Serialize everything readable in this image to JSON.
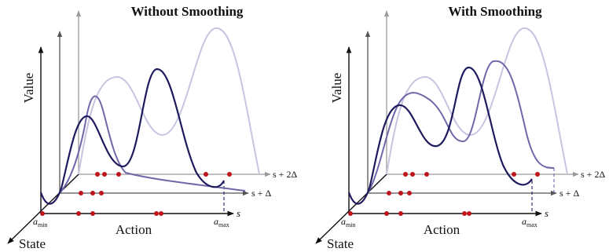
{
  "panels": [
    {
      "title": "Without Smoothing",
      "axis_labels": {
        "value": "Value",
        "state": "State",
        "action": "Action",
        "s0": "s",
        "s1": "s + Δ",
        "s2": "s + 2Δ",
        "a_min_base": "a",
        "a_min_sub": "min",
        "a_max_base": "a",
        "a_max_sub": "max"
      }
    },
    {
      "title": "With Smoothing",
      "axis_labels": {
        "value": "Value",
        "state": "State",
        "action": "Action",
        "s0": "s",
        "s1": "s + Δ",
        "s2": "s + 2Δ",
        "a_min_base": "a",
        "a_min_sub": "min",
        "a_max_base": "a",
        "a_max_sub": "max"
      }
    }
  ],
  "colors": {
    "curve_s0": "#1e1a5e",
    "curve_s1": "#7068a8",
    "curve_s2": "#c9c4e0",
    "axis_front": "#111111",
    "axis_mid": "#555555",
    "axis_back": "#9a9a9a",
    "sample_dot": "#c0141c"
  }
}
